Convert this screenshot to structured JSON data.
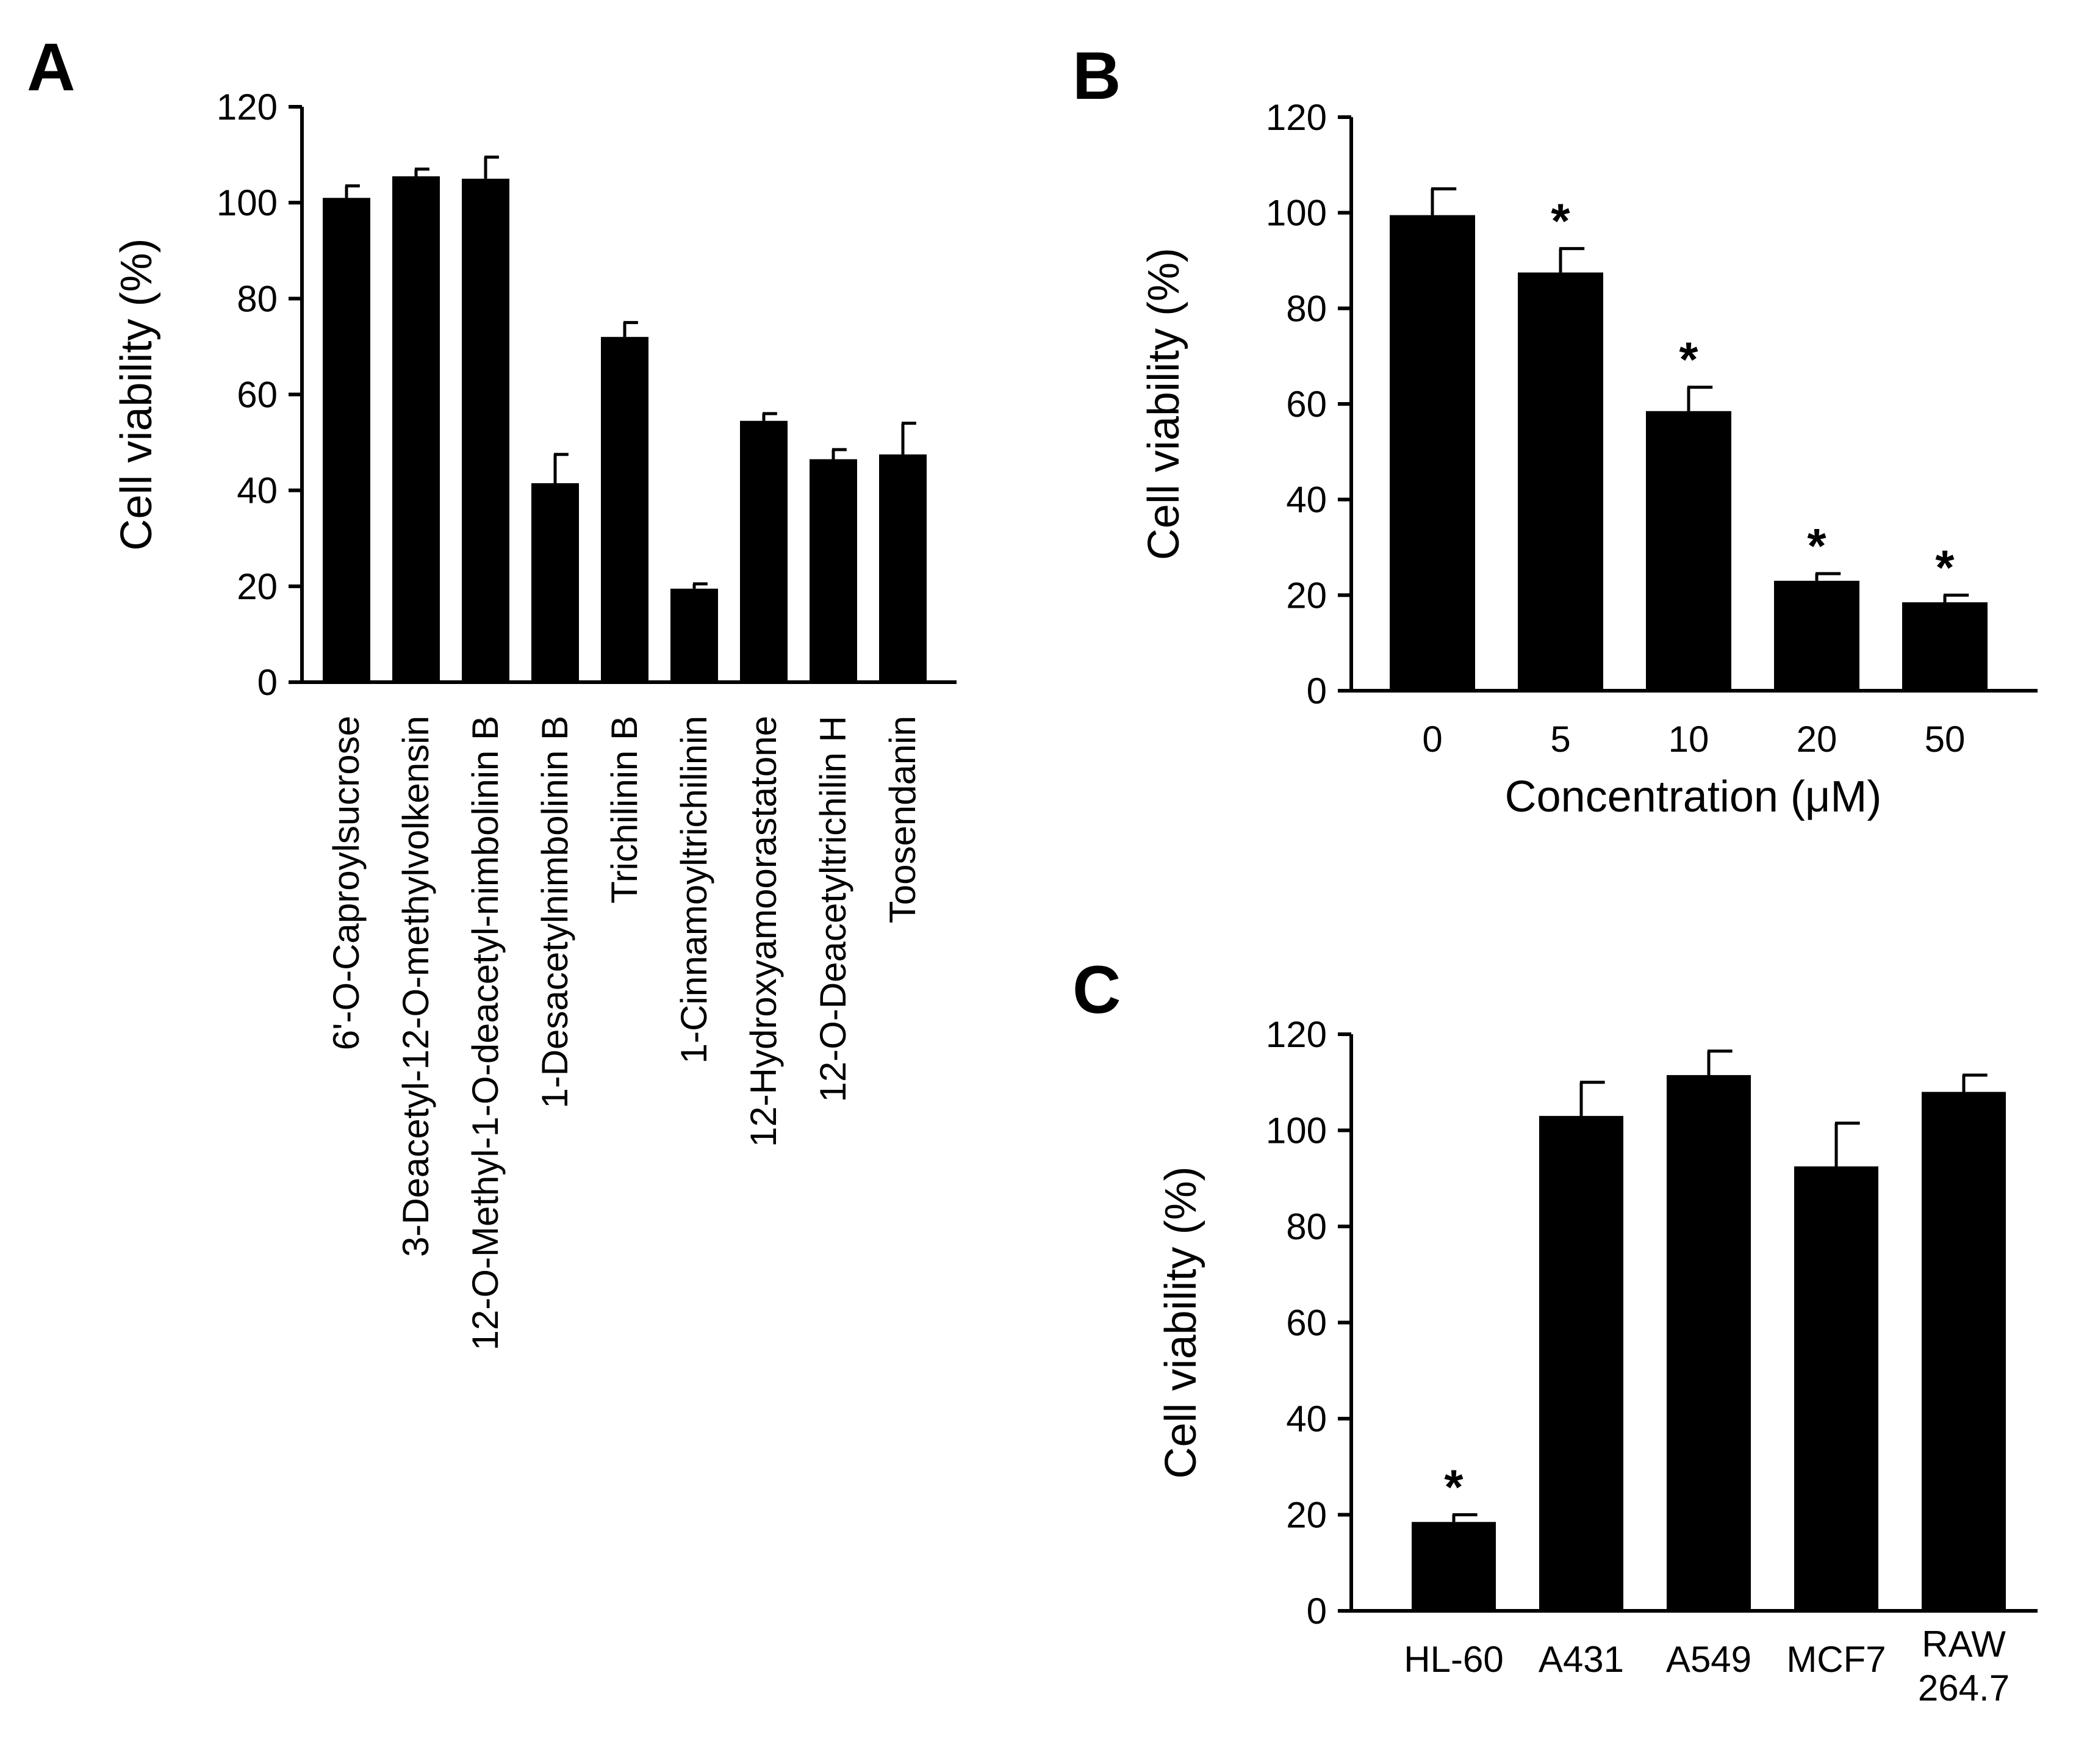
{
  "colors": {
    "bar": "#000000",
    "axis": "#000000",
    "background": "#ffffff"
  },
  "chart_data": [
    {
      "panel": "A",
      "type": "bar",
      "title": "",
      "xlabel": "",
      "ylabel": "Cell viability (%)",
      "ylim": [
        0,
        120
      ],
      "yticks": [
        "0",
        "20",
        "40",
        "60",
        "80",
        "100",
        "120"
      ],
      "categories": [
        "6'-O-Caproylsucrose",
        "3-Deacetyl-12-O-methylvolkensin",
        "12-O-Methyl-1-O-deacetyl-nimbolinin B",
        "1-Desacetylnimbolinin B",
        "Trichilinin B",
        "1-Cinnamoyltrichilinin",
        "12-Hydroxyamoorastatone",
        "12-O-Deacetyltrichilin H",
        "Toosendanin"
      ],
      "values": [
        101,
        105.5,
        105,
        41.5,
        72,
        19.5,
        54.5,
        46.5,
        47.5
      ],
      "errors": [
        2.5,
        1.5,
        4.5,
        6,
        3,
        1,
        1.5,
        2,
        6.5
      ],
      "significance": [
        "",
        "",
        "",
        "",
        "",
        "",
        "",
        "",
        ""
      ],
      "xtick_rotation": "vertical"
    },
    {
      "panel": "B",
      "type": "bar",
      "title": "",
      "xlabel": "Concentration (μM)",
      "ylabel": "Cell viability (%)",
      "ylim": [
        0,
        120
      ],
      "yticks": [
        "0",
        "20",
        "40",
        "60",
        "80",
        "100",
        "120"
      ],
      "categories": [
        "0",
        "5",
        "10",
        "20",
        "50"
      ],
      "values": [
        99.5,
        87.5,
        58.5,
        23,
        18.5
      ],
      "errors": [
        5.5,
        5,
        5,
        1.5,
        1.5
      ],
      "significance": [
        "",
        "*",
        "*",
        "*",
        "*"
      ]
    },
    {
      "panel": "C",
      "type": "bar",
      "title": "",
      "xlabel": "",
      "ylabel": "Cell viability (%)",
      "ylim": [
        0,
        120
      ],
      "yticks": [
        "0",
        "20",
        "40",
        "60",
        "80",
        "100",
        "120"
      ],
      "categories": [
        "HL-60",
        "A431",
        "A549",
        "MCF7",
        "RAW 264.7"
      ],
      "category_lines": [
        [
          "HL-60"
        ],
        [
          "A431"
        ],
        [
          "A549"
        ],
        [
          "MCF7"
        ],
        [
          "RAW",
          "264.7"
        ]
      ],
      "values": [
        18.5,
        103,
        111.5,
        92.5,
        108
      ],
      "errors": [
        1.5,
        7,
        5,
        9,
        3.5
      ],
      "significance": [
        "*",
        "",
        "",
        "",
        ""
      ]
    }
  ]
}
